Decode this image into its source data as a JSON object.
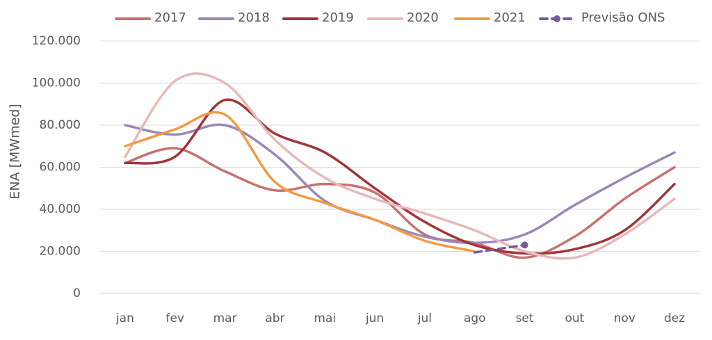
{
  "chart_data": {
    "type": "line",
    "y_label": "ENA [MWmed]",
    "categories": [
      "jan",
      "fev",
      "mar",
      "abr",
      "mai",
      "jun",
      "jul",
      "ago",
      "set",
      "out",
      "nov",
      "dez"
    ],
    "series": [
      {
        "name": "2017",
        "color": "#c9706e",
        "values": [
          62000,
          69000,
          58000,
          49000,
          52000,
          48000,
          28000,
          24000,
          17000,
          27000,
          45000,
          60000
        ]
      },
      {
        "name": "2018",
        "color": "#9b86b8",
        "values": [
          80000,
          75500,
          80000,
          66000,
          44000,
          35000,
          27000,
          24000,
          28000,
          42000,
          55000,
          67000
        ]
      },
      {
        "name": "2019",
        "color": "#a0343a",
        "values": [
          62000,
          65000,
          92000,
          76000,
          67000,
          50000,
          34000,
          23000,
          19000,
          21000,
          30000,
          52000
        ]
      },
      {
        "name": "2020",
        "color": "#e8b8ba",
        "values": [
          65000,
          101000,
          100000,
          73000,
          55000,
          45000,
          38000,
          30000,
          20000,
          17000,
          28000,
          45000
        ]
      },
      {
        "name": "2021",
        "color": "#f59a43",
        "values": [
          70000,
          78000,
          85000,
          53000,
          43000,
          35000,
          25000,
          20000,
          null,
          null,
          null,
          null
        ]
      },
      {
        "name": "Previsão ONS",
        "color": "#7a5a9c",
        "dashed": true,
        "values": [
          null,
          null,
          null,
          null,
          null,
          null,
          null,
          19500,
          23000,
          null,
          null,
          null
        ]
      }
    ],
    "ylim": [
      0,
      120000
    ],
    "yticks": [
      0,
      {
        "value": 20000,
        "label": "20.000"
      },
      {
        "value": 40000,
        "label": "40.000"
      },
      {
        "value": 60000,
        "label": "60.000"
      },
      {
        "value": 80000,
        "label": "80.000"
      },
      {
        "value": 100000,
        "label": "100.000"
      },
      {
        "value": 120000,
        "label": "120.000"
      }
    ],
    "grid": true,
    "legend": "top"
  }
}
